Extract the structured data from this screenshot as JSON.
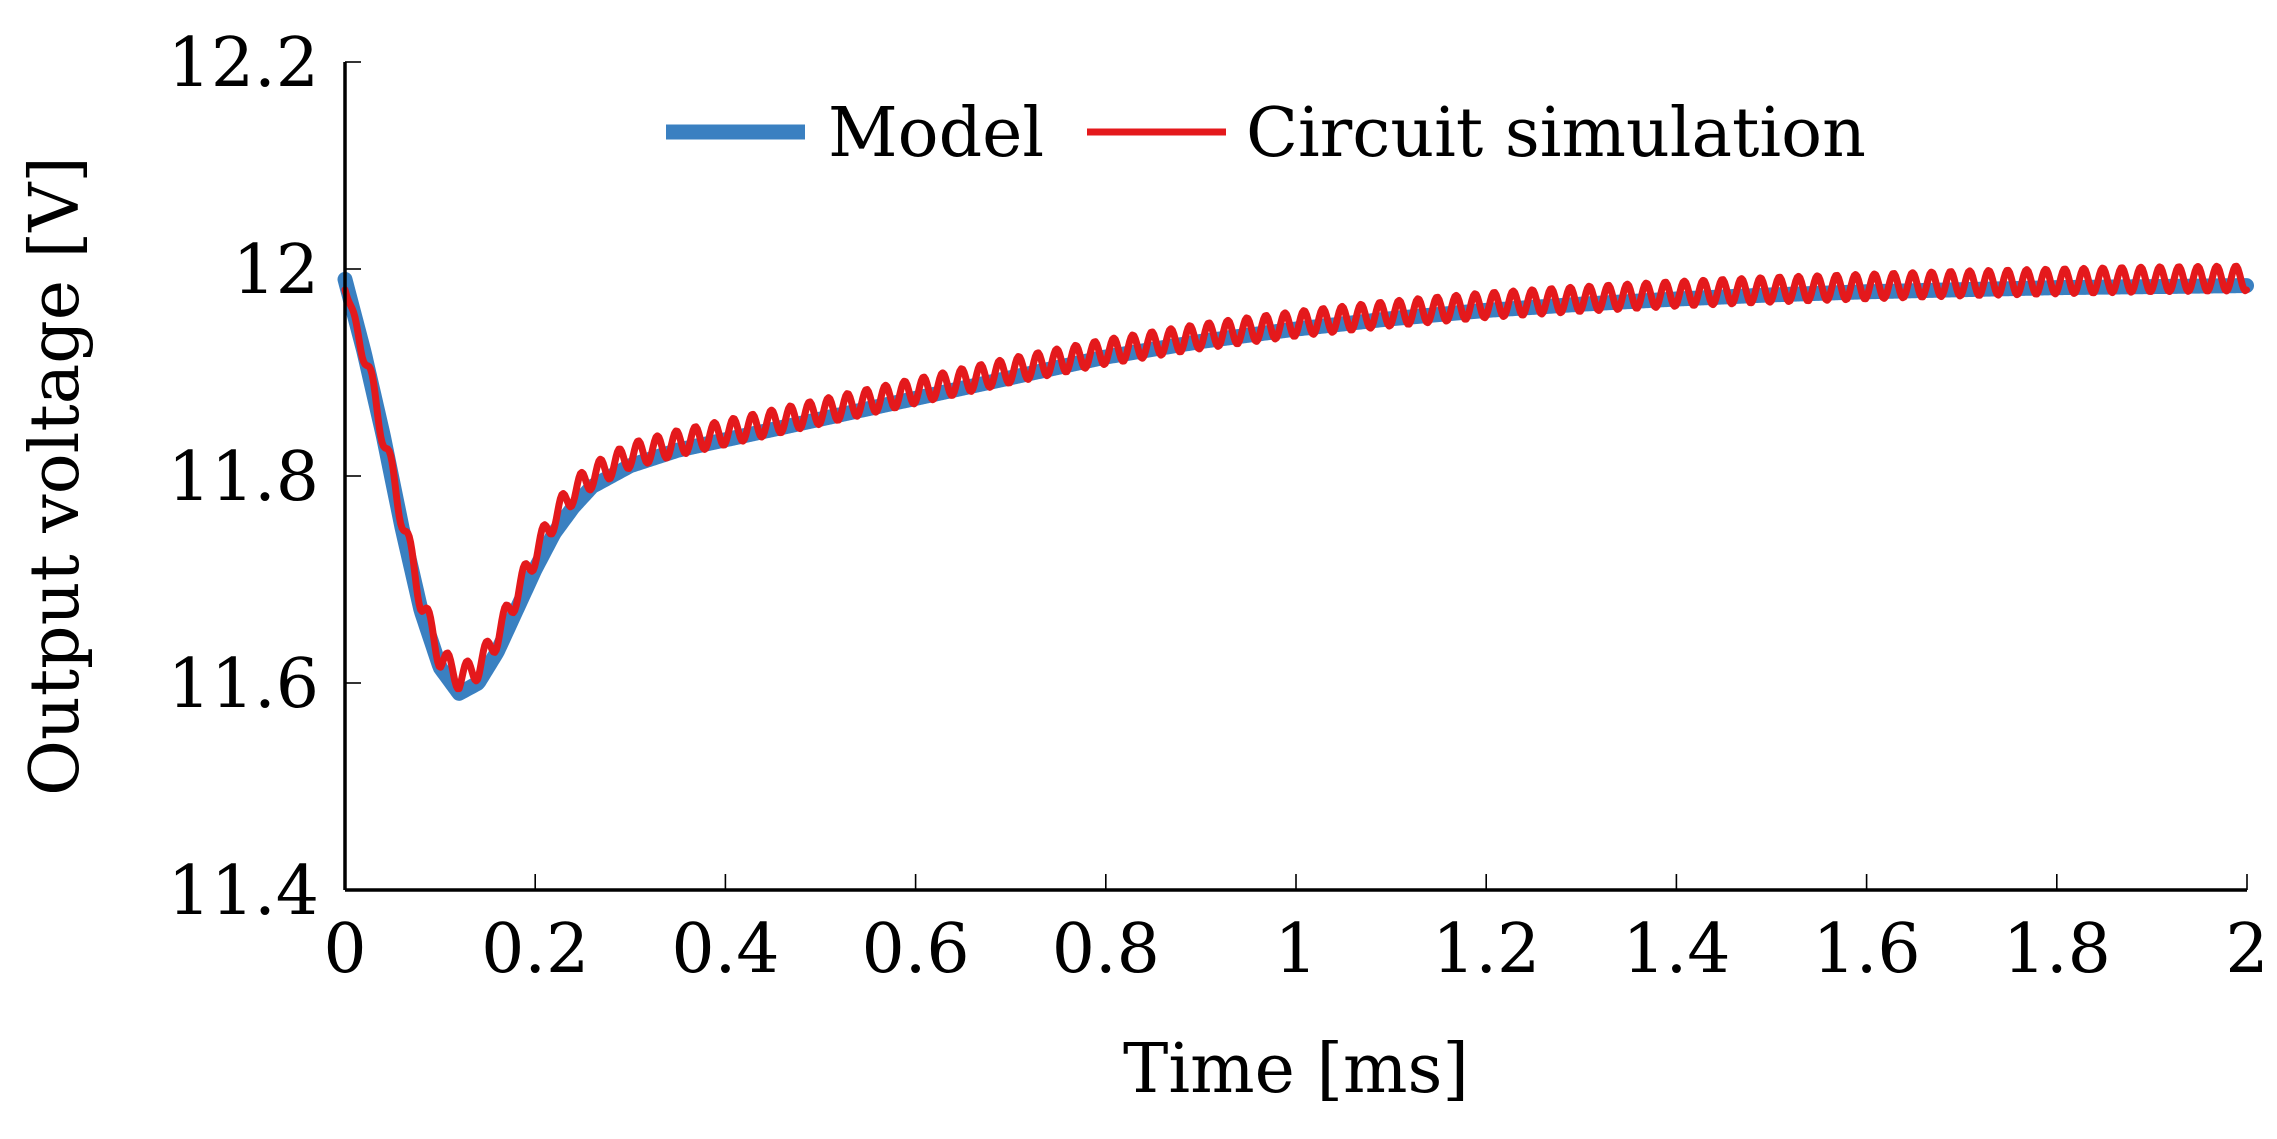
{
  "chart_data": {
    "type": "line",
    "title": "",
    "xlabel": "Time [ms]",
    "ylabel": "Output voltage [V]",
    "xlim": [
      0,
      2
    ],
    "ylim": [
      11.4,
      12.2
    ],
    "xticks": [
      0,
      0.2,
      0.4,
      0.6,
      0.8,
      1,
      1.2,
      1.4,
      1.6,
      1.8,
      2
    ],
    "xtick_labels": [
      "0",
      "0.2",
      "0.4",
      "0.6",
      "0.8",
      "1",
      "1.2",
      "1.4",
      "1.6",
      "1.8",
      "2"
    ],
    "yticks": [
      11.4,
      11.6,
      11.8,
      12,
      12.2
    ],
    "ytick_labels": [
      "11.4",
      "11.6",
      "11.8",
      "12",
      "12.2"
    ],
    "legend_position": "top",
    "grid": false,
    "series": [
      {
        "name": "Model",
        "color": "#3a80c1",
        "line": "thick",
        "x": [
          0,
          0.02,
          0.04,
          0.06,
          0.08,
          0.1,
          0.12,
          0.14,
          0.16,
          0.18,
          0.2,
          0.22,
          0.24,
          0.26,
          0.28,
          0.3,
          0.35,
          0.4,
          0.45,
          0.5,
          0.55,
          0.6,
          0.65,
          0.7,
          0.8,
          0.9,
          1.0,
          1.1,
          1.2,
          1.3,
          1.4,
          1.5,
          1.6,
          1.7,
          1.8,
          1.9,
          2.0
        ],
        "y": [
          11.99,
          11.92,
          11.84,
          11.75,
          11.67,
          11.615,
          11.59,
          11.6,
          11.63,
          11.67,
          11.71,
          11.745,
          11.77,
          11.79,
          11.8,
          11.81,
          11.825,
          11.835,
          11.845,
          11.855,
          11.865,
          11.875,
          11.885,
          11.895,
          11.915,
          11.93,
          11.942,
          11.952,
          11.96,
          11.966,
          11.971,
          11.975,
          11.978,
          11.98,
          11.982,
          11.983,
          11.984
        ]
      },
      {
        "name": "Circuit simulation",
        "color": "#e4191c",
        "line": "ripple",
        "x": [
          0,
          0.02,
          0.04,
          0.06,
          0.08,
          0.1,
          0.12,
          0.14,
          0.16,
          0.18,
          0.2,
          0.22,
          0.24,
          0.26,
          0.28,
          0.3,
          0.35,
          0.4,
          0.45,
          0.5,
          0.55,
          0.6,
          0.65,
          0.7,
          0.8,
          0.9,
          1.0,
          1.1,
          1.2,
          1.3,
          1.4,
          1.5,
          1.6,
          1.7,
          1.8,
          1.9,
          2.0
        ],
        "y": [
          11.98,
          11.92,
          11.84,
          11.76,
          11.68,
          11.625,
          11.605,
          11.615,
          11.645,
          11.685,
          11.725,
          11.76,
          11.785,
          11.8,
          11.81,
          11.82,
          11.832,
          11.842,
          11.852,
          11.862,
          11.872,
          11.882,
          11.892,
          11.902,
          11.92,
          11.935,
          11.947,
          11.957,
          11.965,
          11.971,
          11.976,
          11.98,
          11.983,
          11.986,
          11.988,
          11.99,
          11.991
        ],
        "ripple_amplitude": 0.012,
        "ripple_period": 0.02
      }
    ]
  }
}
